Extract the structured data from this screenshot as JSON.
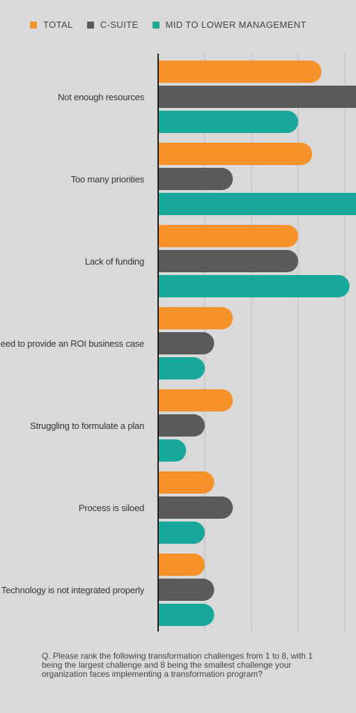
{
  "legend": [
    {
      "name": "TOTAL",
      "color": "#f7922a"
    },
    {
      "name": "C-SUITE",
      "color": "#5a5a5a"
    },
    {
      "name": "MID TO LOWER MANAGEMENT",
      "color": "#17a89a"
    }
  ],
  "chart_data": {
    "type": "bar",
    "orientation": "horizontal",
    "categories": [
      "Not enough resources",
      "Too many priorities",
      "Lack of funding",
      "Need to provide an ROI business case",
      "Struggling to formulate a plan",
      "Process is siloed",
      "Technology is not integrated properly"
    ],
    "series": [
      {
        "name": "TOTAL",
        "color": "#f7922a",
        "values": [
          35,
          33,
          30,
          16,
          16,
          12,
          10
        ]
      },
      {
        "name": "C-SUITE",
        "color": "#5a5a5a",
        "values": [
          45,
          16,
          30,
          12,
          10,
          16,
          12
        ]
      },
      {
        "name": "MID TO LOWER MANAGEMENT",
        "color": "#17a89a",
        "values": [
          30,
          45,
          41,
          10,
          6,
          10,
          12
        ]
      }
    ],
    "xlim": [
      0,
      50
    ],
    "grid": true,
    "legend_position": "top"
  },
  "footnote": "Q. Please rank the following transformation challenges from 1 to 8, with 1 being the largest challenge and 8 being the smallest challenge your organization faces implementing a transformation program?"
}
